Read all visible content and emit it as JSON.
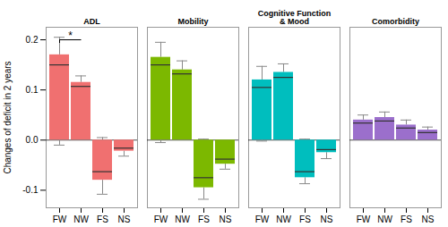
{
  "chart_data": {
    "type": "bar",
    "ylabel": "Changes of deficit in 2 years",
    "categories": [
      "FW",
      "NW",
      "FS",
      "NS"
    ],
    "series": [
      {
        "name": "ADL",
        "color": "#F07070",
        "bottom": [
          0,
          0,
          -0.08,
          -0.022
        ],
        "values": [
          0.17,
          0.115,
          0,
          0
        ],
        "median": [
          0.15,
          0.107,
          -0.063,
          -0.016
        ],
        "whisker_low": [
          -0.01,
          0.09,
          -0.108,
          -0.032
        ],
        "whisker_high": [
          0.205,
          0.128,
          0.005,
          -0.005
        ]
      },
      {
        "name": "Mobility",
        "color": "#7CB800",
        "bottom": [
          0,
          0,
          -0.095,
          -0.048
        ],
        "values": [
          0.165,
          0.14,
          0,
          0
        ],
        "median": [
          0.15,
          0.132,
          -0.075,
          -0.038
        ],
        "whisker_low": [
          -0.005,
          0.09,
          -0.118,
          -0.058
        ],
        "whisker_high": [
          0.195,
          0.158,
          0.002,
          -0.025
        ]
      },
      {
        "name": "Cognitive Function & Mood",
        "color": "#00BEBE",
        "bottom": [
          0,
          0,
          -0.075,
          -0.025
        ],
        "values": [
          0.12,
          0.135,
          0,
          0
        ],
        "median": [
          0.105,
          0.125,
          -0.063,
          -0.019
        ],
        "whisker_low": [
          -0.002,
          0.002,
          -0.087,
          -0.037
        ],
        "whisker_high": [
          0.147,
          0.152,
          0.002,
          -0.008
        ]
      },
      {
        "name": "Comorbidity",
        "color": "#9B6FCC",
        "bottom": [
          0,
          0,
          0,
          0
        ],
        "values": [
          0.04,
          0.045,
          0.03,
          0.02
        ],
        "median": [
          0.034,
          0.038,
          0.024,
          0.015
        ],
        "whisker_low": [
          0.024,
          0.028,
          0.014,
          0.008
        ],
        "whisker_high": [
          0.05,
          0.056,
          0.04,
          0.026
        ]
      }
    ],
    "annotations": [
      {
        "text": "*",
        "series": "ADL",
        "from": "FW",
        "to": "NW",
        "y": 0.2
      }
    ],
    "hlines": [
      0
    ],
    "ylim": [
      -0.135,
      0.225
    ],
    "yticks": [
      -0.1,
      {
        "value": 0,
        "label": "0.0"
      },
      0.1,
      0.2
    ]
  }
}
